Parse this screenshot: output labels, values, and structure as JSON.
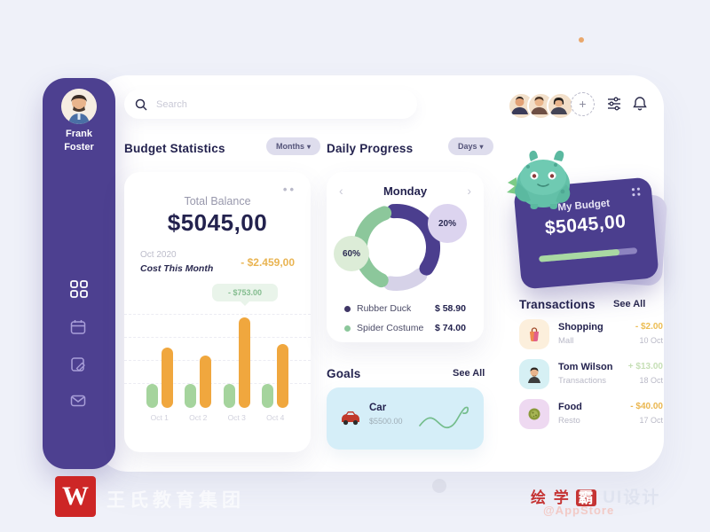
{
  "sidebar": {
    "user_name_line1": "Frank",
    "user_name_line2": "Foster",
    "nav": [
      {
        "icon": "grid-dashboard",
        "active": true
      },
      {
        "icon": "calendar",
        "active": false
      },
      {
        "icon": "notes",
        "active": false
      },
      {
        "icon": "mail",
        "active": false
      }
    ],
    "logout_icon": "logout",
    "bg_color": "#4d4090"
  },
  "header": {
    "search_placeholder": "Search",
    "add_button_label": "+",
    "team_avatars": [
      "teammate-1",
      "teammate-2",
      "teammate-3"
    ],
    "action_icons": [
      "sliders-filter",
      "notification-bell"
    ]
  },
  "budget_section": {
    "title": "Budget Statistics",
    "filter_label": "Months",
    "filter_caret": "▾"
  },
  "daily_section": {
    "title": "Daily Progress",
    "filter_label": "Days",
    "filter_caret": "▾"
  },
  "balance_card": {
    "menu_dots": "••",
    "title": "Total Balance",
    "amount": "$5045,00",
    "period": "Oct 2020",
    "cost_label": "Cost This Month",
    "cost_value": "- $2.459,00",
    "cost_value_color": "#e9b452",
    "tooltip": "- $753.00",
    "chart": {
      "type": "bar",
      "categories": [
        "Oct 1",
        "Oct 2",
        "Oct 3",
        "Oct 4"
      ],
      "green_heights": [
        27,
        27,
        27,
        27
      ],
      "orange_heights": [
        68,
        59,
        102,
        72
      ],
      "colors": {
        "green": "#a5d49d",
        "orange": "#f0a73e"
      },
      "grid": "dashed"
    }
  },
  "daily_card": {
    "title": "Monday",
    "prev_icon": "‹",
    "next_icon": "›",
    "donut": {
      "type": "donut",
      "arcs": [
        {
          "name": "remaining",
          "color": "#d6d2e8",
          "start": 140,
          "span": 50
        },
        {
          "name": "rubber-duck",
          "color": "#4b3e8e",
          "start": -5,
          "span": 130
        },
        {
          "name": "spider-costume",
          "color": "#8cc79b",
          "start": 205,
          "span": 135
        }
      ],
      "badges": [
        {
          "label": "20%",
          "bg": "#dcd4ef"
        },
        {
          "label": "60%",
          "bg": "#dcecd7"
        }
      ]
    },
    "legend": [
      {
        "label": "Rubber Duck",
        "value": "$ 58.90",
        "dot_color": "#3f3666"
      },
      {
        "label": "Spider Costume",
        "value": "$ 74.00",
        "dot_color": "#8cc79b"
      }
    ]
  },
  "goals": {
    "title": "Goals",
    "see_all": "See All",
    "items": [
      {
        "name": "Car",
        "amount": "$5500.00",
        "icon": "car",
        "card_bg": "#d5eef8"
      }
    ]
  },
  "budget_widget": {
    "title": "My Budget",
    "amount": "$5045,00",
    "progress_pct": 82,
    "mascot_icon": "bulbasaur-toy",
    "card_color": "#4b3e8e"
  },
  "transactions": {
    "title": "Transactions",
    "see_all": "See All",
    "items": [
      {
        "title": "Shopping",
        "subtitle": "Mall",
        "amount": "- $2.00",
        "date": "10 Oct",
        "icon": "shopping-bag",
        "icon_bg": "#fcefdc",
        "amount_color": "#ecbd53"
      },
      {
        "title": "Tom Wilson",
        "subtitle": "Transactions",
        "amount": "+ $13.00",
        "date": "18 Oct",
        "icon": "person",
        "icon_bg": "#d6f0f4",
        "amount_color": "#c6dfb6"
      },
      {
        "title": "Food",
        "subtitle": "Resto",
        "amount": "- $40.00",
        "date": "17 Oct",
        "icon": "food",
        "icon_bg": "#eed9f1",
        "amount_color": "#eab64f"
      }
    ]
  },
  "watermarks": {
    "left_logo": "W",
    "left_text": "王氏教育集团",
    "right_red_text": "绘 学",
    "right_boxed_char": "霸",
    "right_gray_text": "UI设计",
    "right_sub_text": "@AppStore"
  }
}
